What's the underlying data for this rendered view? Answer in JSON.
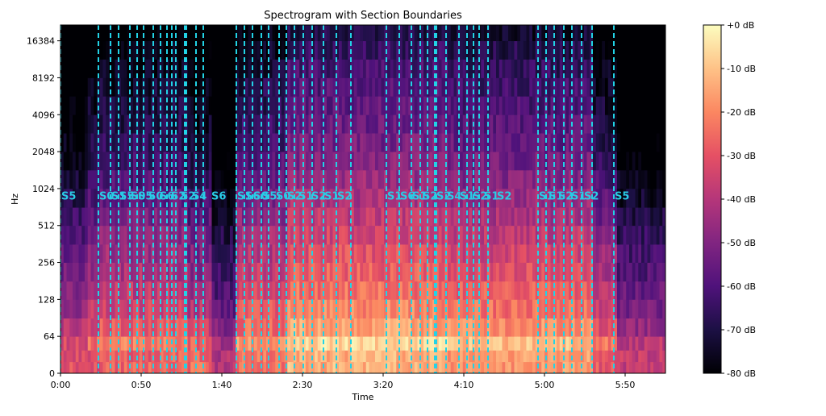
{
  "chart_data": {
    "type": "heatmap",
    "title": "Spectrogram with Section Boundaries",
    "xlabel": "Time",
    "ylabel": "Hz",
    "x_unit": "seconds",
    "xlim": [
      0,
      375
    ],
    "x_ticks": [
      {
        "value": 0,
        "label": "0:00"
      },
      {
        "value": 50,
        "label": "0:50"
      },
      {
        "value": 100,
        "label": "1:40"
      },
      {
        "value": 150,
        "label": "2:30"
      },
      {
        "value": 200,
        "label": "3:20"
      },
      {
        "value": 250,
        "label": "4:10"
      },
      {
        "value": 300,
        "label": "5:00"
      },
      {
        "value": 350,
        "label": "5:50"
      }
    ],
    "y_scale": "symlog",
    "ylim": [
      0,
      22050
    ],
    "y_ticks": [
      {
        "value": 0,
        "label": "0"
      },
      {
        "value": 64,
        "label": "64"
      },
      {
        "value": 128,
        "label": "128"
      },
      {
        "value": 256,
        "label": "256"
      },
      {
        "value": 512,
        "label": "512"
      },
      {
        "value": 1024,
        "label": "1024"
      },
      {
        "value": 2048,
        "label": "2048"
      },
      {
        "value": 4096,
        "label": "4096"
      },
      {
        "value": 8192,
        "label": "8192"
      },
      {
        "value": 16384,
        "label": "16384"
      }
    ],
    "colorbar": {
      "colormap": "magma",
      "range_db": [
        -80,
        0
      ],
      "ticks": [
        {
          "value": 0,
          "label": "+0 dB"
        },
        {
          "value": -10,
          "label": "-10 dB"
        },
        {
          "value": -20,
          "label": "-20 dB"
        },
        {
          "value": -30,
          "label": "-30 dB"
        },
        {
          "value": -40,
          "label": "-40 dB"
        },
        {
          "value": -50,
          "label": "-50 dB"
        },
        {
          "value": -60,
          "label": "-60 dB"
        },
        {
          "value": -70,
          "label": "-70 dB"
        },
        {
          "value": -80,
          "label": "-80 dB"
        }
      ]
    },
    "boundary_style": {
      "color": "#22d3e6",
      "dash": "dashed"
    },
    "label_style": {
      "color": "#29cce6",
      "frequency_hz": 900
    },
    "spectrogram_bands_hz_db": [
      {
        "hz": 45,
        "db": -5
      },
      {
        "hz": 90,
        "db": -18
      },
      {
        "hz": 180,
        "db": -26
      },
      {
        "hz": 360,
        "db": -32
      },
      {
        "hz": 720,
        "db": -40
      },
      {
        "hz": 1500,
        "db": -48
      },
      {
        "hz": 3000,
        "db": -54
      },
      {
        "hz": 6000,
        "db": -58
      },
      {
        "hz": 12000,
        "db": -63
      },
      {
        "hz": 20000,
        "db": -70
      }
    ],
    "activity_segments": [
      {
        "start": 0,
        "end": 16,
        "level": 0.35
      },
      {
        "start": 16,
        "end": 24,
        "level": 0.55
      },
      {
        "start": 24,
        "end": 78,
        "level": 0.65
      },
      {
        "start": 78,
        "end": 94,
        "level": 0.5
      },
      {
        "start": 94,
        "end": 109,
        "level": 0.1
      },
      {
        "start": 109,
        "end": 140,
        "level": 0.75
      },
      {
        "start": 140,
        "end": 240,
        "level": 1.0
      },
      {
        "start": 240,
        "end": 330,
        "level": 0.9
      },
      {
        "start": 330,
        "end": 345,
        "level": 0.6
      },
      {
        "start": 345,
        "end": 375,
        "level": 0.2
      }
    ],
    "boundaries_s": [
      0,
      23.5,
      31,
      36,
      43,
      47.5,
      51.5,
      57.5,
      62,
      66,
      69,
      71.5,
      77,
      78,
      84,
      88.5,
      109,
      114,
      119,
      124.5,
      129,
      135.5,
      140,
      145,
      150.5,
      156,
      163,
      171,
      180,
      202,
      210,
      217.5,
      223,
      227.5,
      232,
      233,
      239,
      247,
      252,
      256,
      259.5,
      265,
      296,
      301,
      306,
      312,
      317,
      323,
      329.5,
      343
    ],
    "section_labels": [
      {
        "t": 0,
        "label": "S5"
      },
      {
        "t": 23.5,
        "label": "S0"
      },
      {
        "t": 31,
        "label": "S1"
      },
      {
        "t": 36,
        "label": "S5"
      },
      {
        "t": 43,
        "label": "S0"
      },
      {
        "t": 47.5,
        "label": "S5"
      },
      {
        "t": 54,
        "label": "S0"
      },
      {
        "t": 61,
        "label": "S6"
      },
      {
        "t": 68,
        "label": "S2"
      },
      {
        "t": 74,
        "label": "S2"
      },
      {
        "t": 81,
        "label": "S4"
      },
      {
        "t": 93,
        "label": "S6"
      },
      {
        "t": 109,
        "label": "S1"
      },
      {
        "t": 114,
        "label": "S6"
      },
      {
        "t": 119,
        "label": "S0"
      },
      {
        "t": 124.5,
        "label": "S5"
      },
      {
        "t": 133,
        "label": "S0"
      },
      {
        "t": 140,
        "label": "S2"
      },
      {
        "t": 147,
        "label": "S1"
      },
      {
        "t": 155,
        "label": "S2"
      },
      {
        "t": 163,
        "label": "S1"
      },
      {
        "t": 171,
        "label": "S2"
      },
      {
        "t": 202,
        "label": "S1"
      },
      {
        "t": 210,
        "label": "S6"
      },
      {
        "t": 217.5,
        "label": "S1"
      },
      {
        "t": 224,
        "label": "S2"
      },
      {
        "t": 232.5,
        "label": "S2"
      },
      {
        "t": 239,
        "label": "S4"
      },
      {
        "t": 247,
        "label": "S1"
      },
      {
        "t": 255,
        "label": "S2"
      },
      {
        "t": 262,
        "label": "S1"
      },
      {
        "t": 270,
        "label": "S2"
      },
      {
        "t": 296,
        "label": "S1"
      },
      {
        "t": 302,
        "label": "S1"
      },
      {
        "t": 308,
        "label": "S2"
      },
      {
        "t": 316,
        "label": "S1"
      },
      {
        "t": 324,
        "label": "S2"
      },
      {
        "t": 343,
        "label": "S5"
      }
    ]
  }
}
